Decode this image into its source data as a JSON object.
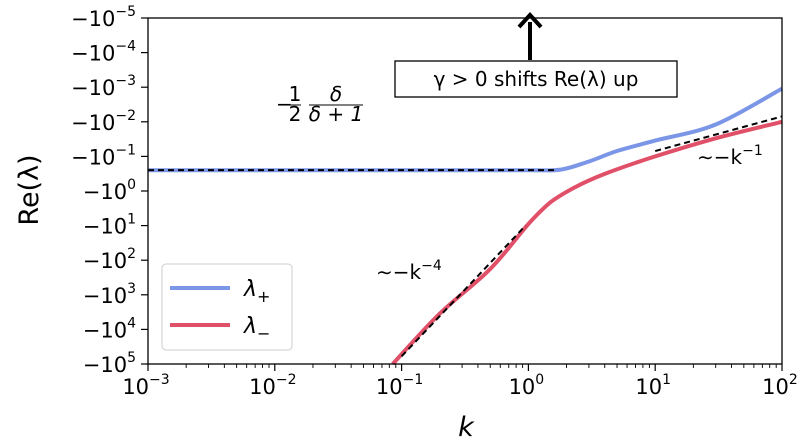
{
  "chart_data": {
    "type": "line",
    "title": "",
    "xlabel": "k",
    "ylabel": "Re(λ)",
    "xscale": "log",
    "yscale": "symlog-negative",
    "xlim": [
      0.001,
      100
    ],
    "ylim_exponents": [
      -5,
      5
    ],
    "x_ticks": [
      {
        "base": "10",
        "exp": "−3",
        "value": 0.001
      },
      {
        "base": "10",
        "exp": "−2",
        "value": 0.01
      },
      {
        "base": "10",
        "exp": "−1",
        "value": 0.1
      },
      {
        "base": "10",
        "exp": "0",
        "value": 1
      },
      {
        "base": "10",
        "exp": "1",
        "value": 10
      },
      {
        "base": "10",
        "exp": "2",
        "value": 100
      }
    ],
    "y_ticks": [
      {
        "base": "−10",
        "exp": "−5",
        "value": -1e-05
      },
      {
        "base": "−10",
        "exp": "−4",
        "value": -0.0001
      },
      {
        "base": "−10",
        "exp": "−3",
        "value": -0.001
      },
      {
        "base": "−10",
        "exp": "−2",
        "value": -0.01
      },
      {
        "base": "−10",
        "exp": "−1",
        "value": -0.1
      },
      {
        "base": "−10",
        "exp": "0",
        "value": -1
      },
      {
        "base": "−10",
        "exp": "1",
        "value": -10
      },
      {
        "base": "−10",
        "exp": "2",
        "value": -100
      },
      {
        "base": "−10",
        "exp": "3",
        "value": -1000
      },
      {
        "base": "−10",
        "exp": "4",
        "value": -10000
      },
      {
        "base": "−10",
        "exp": "5",
        "value": -100000
      }
    ],
    "grid": false,
    "legend": "lower-left",
    "series": [
      {
        "name": "λ₊",
        "color": "#7b96e6",
        "x": [
          0.001,
          0.01,
          0.1,
          1,
          1.8,
          3,
          5,
          10,
          30,
          100
        ],
        "y": [
          -0.25,
          -0.25,
          -0.25,
          -0.25,
          -0.24,
          -0.14,
          -0.07,
          -0.035,
          -0.012,
          -0.0011
        ]
      },
      {
        "name": "λ₋",
        "color": "#e05068",
        "x": [
          0.085,
          0.2,
          0.5,
          1,
          1.5,
          2.3,
          4,
          10,
          30,
          100
        ],
        "y": [
          -100000,
          -3500,
          -180,
          -9,
          -2.1,
          -0.8,
          -0.32,
          -0.1,
          -0.03,
          -0.01
        ]
      }
    ],
    "reference_lines": [
      {
        "x": [
          0.001,
          1.6
        ],
        "y": [
          -0.25,
          -0.25
        ]
      },
      {
        "x": [
          0.1,
          0.95
        ],
        "y": [
          -60000,
          -10
        ]
      },
      {
        "x": [
          10,
          100
        ],
        "y": [
          -0.07,
          -0.007
        ]
      }
    ],
    "annotations": {
      "plateau": {
        "minus": "−",
        "num1": "1",
        "den1": "2",
        "num2": "δ",
        "den2": "δ + 1"
      },
      "steep": {
        "prefix": "∼−k",
        "exp": "−4"
      },
      "shallow": {
        "prefix": "∼−k",
        "exp": "−1"
      },
      "shift_box": "γ > 0 shifts Re(λ) up"
    },
    "legend_entries": [
      {
        "symbol": "λ",
        "sub": "+",
        "color": "#7b96e6"
      },
      {
        "symbol": "λ",
        "sub": "−",
        "color": "#e05068"
      }
    ]
  }
}
